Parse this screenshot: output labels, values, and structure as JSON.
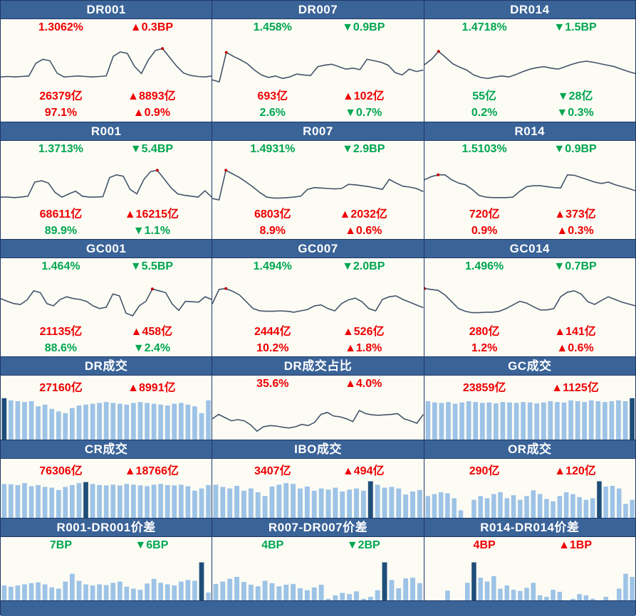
{
  "palette": {
    "header_bg": "#3A6398",
    "border": "#1F3864",
    "panel_bg": "#FCFCF5",
    "bar_light": "#9DC3E6",
    "bar_dark": "#1F4E79",
    "line": "#44546A",
    "red": "#EE0000",
    "green": "#00A650",
    "marker": "#C00000"
  },
  "footer": {
    "label": ""
  },
  "chart_data": [
    {
      "id": "DR001",
      "title": "DR001",
      "type": "line",
      "kind": "rate-line",
      "ylim": [
        0,
        100
      ],
      "grid": false,
      "stat_rows": [
        [
          {
            "text": "1.3062%",
            "color": "red"
          },
          {
            "text": "▲0.3BP",
            "color": "red"
          }
        ],
        [
          {
            "text": "26379亿",
            "color": "red"
          },
          {
            "text": "▲8893亿",
            "color": "red"
          }
        ],
        [
          {
            "text": "97.1%",
            "color": "red"
          },
          {
            "text": "▲0.9%",
            "color": "red"
          }
        ]
      ],
      "values": [
        20,
        21,
        20,
        21,
        22,
        48,
        56,
        53,
        28,
        20,
        21,
        22,
        21,
        20,
        21,
        22,
        62,
        71,
        68,
        42,
        27,
        55,
        74,
        78,
        60,
        42,
        28,
        23,
        21,
        20,
        22
      ],
      "marker_index": 23
    },
    {
      "id": "DR007",
      "title": "DR007",
      "type": "line",
      "kind": "rate-line",
      "ylim": [
        0,
        100
      ],
      "grid": false,
      "stat_rows": [
        [
          {
            "text": "1.458%",
            "color": "green"
          },
          {
            "text": "▼0.9BP",
            "color": "green"
          }
        ],
        [
          {
            "text": "693亿",
            "color": "red"
          },
          {
            "text": "▲102亿",
            "color": "red"
          }
        ],
        [
          {
            "text": "2.6%",
            "color": "green"
          },
          {
            "text": "▼0.7%",
            "color": "green"
          }
        ]
      ],
      "values": [
        14,
        10,
        70,
        62,
        55,
        47,
        34,
        24,
        19,
        22,
        17,
        20,
        26,
        24,
        23,
        41,
        44,
        46,
        41,
        36,
        38,
        35,
        56,
        53,
        50,
        44,
        29,
        24,
        36,
        31,
        34
      ],
      "marker_index": 2
    },
    {
      "id": "DR014",
      "title": "DR014",
      "type": "line",
      "kind": "rate-line",
      "ylim": [
        0,
        100
      ],
      "grid": false,
      "stat_rows": [
        [
          {
            "text": "1.4718%",
            "color": "green"
          },
          {
            "text": "▼1.5BP",
            "color": "green"
          }
        ],
        [
          {
            "text": "55亿",
            "color": "green"
          },
          {
            "text": "▼28亿",
            "color": "green"
          }
        ],
        [
          {
            "text": "0.2%",
            "color": "green"
          },
          {
            "text": "▼0.3%",
            "color": "green"
          }
        ]
      ],
      "values": [
        45,
        56,
        72,
        60,
        47,
        40,
        34,
        24,
        19,
        17,
        20,
        22,
        20,
        25,
        31,
        36,
        39,
        41,
        38,
        36,
        41,
        46,
        50,
        52,
        50,
        47,
        44,
        41,
        36,
        31,
        27
      ],
      "marker_index": 2
    },
    {
      "id": "R001",
      "title": "R001",
      "type": "line",
      "kind": "rate-line",
      "ylim": [
        0,
        100
      ],
      "grid": false,
      "stat_rows": [
        [
          {
            "text": "1.3713%",
            "color": "green"
          },
          {
            "text": "▼5.4BP",
            "color": "green"
          }
        ],
        [
          {
            "text": "68611亿",
            "color": "red"
          },
          {
            "text": "▲16215亿",
            "color": "red"
          }
        ],
        [
          {
            "text": "89.9%",
            "color": "green"
          },
          {
            "text": "▼1.1%",
            "color": "green"
          }
        ]
      ],
      "values": [
        17,
        17,
        16,
        17,
        19,
        50,
        53,
        48,
        27,
        17,
        24,
        30,
        19,
        17,
        17,
        18,
        60,
        66,
        63,
        34,
        24,
        55,
        73,
        76,
        57,
        38,
        24,
        21,
        19,
        17,
        31,
        17
      ],
      "marker_index": 23
    },
    {
      "id": "R007",
      "title": "R007",
      "type": "line",
      "kind": "rate-line",
      "ylim": [
        0,
        100
      ],
      "grid": false,
      "stat_rows": [
        [
          {
            "text": "1.4931%",
            "color": "green"
          },
          {
            "text": "▼2.9BP",
            "color": "green"
          }
        ],
        [
          {
            "text": "6803亿",
            "color": "red"
          },
          {
            "text": "▲2032亿",
            "color": "red"
          }
        ],
        [
          {
            "text": "8.9%",
            "color": "red"
          },
          {
            "text": "▲0.6%",
            "color": "red"
          }
        ]
      ],
      "values": [
        14,
        11,
        76,
        68,
        60,
        50,
        39,
        27,
        17,
        15,
        15,
        16,
        17,
        19,
        34,
        38,
        37,
        36,
        35,
        36,
        45,
        44,
        42,
        40,
        37,
        34,
        56,
        48,
        41,
        39,
        36,
        29
      ],
      "marker_index": 2
    },
    {
      "id": "R014",
      "title": "R014",
      "type": "line",
      "kind": "rate-line",
      "ylim": [
        0,
        100
      ],
      "grid": false,
      "stat_rows": [
        [
          {
            "text": "1.5103%",
            "color": "green"
          },
          {
            "text": "▼0.9BP",
            "color": "green"
          }
        ],
        [
          {
            "text": "720亿",
            "color": "red"
          },
          {
            "text": "▲373亿",
            "color": "red"
          }
        ],
        [
          {
            "text": "0.9%",
            "color": "red"
          },
          {
            "text": "▲0.3%",
            "color": "red"
          }
        ]
      ],
      "values": [
        55,
        62,
        66,
        66,
        55,
        48,
        44,
        34,
        21,
        17,
        16,
        16,
        16,
        17,
        30,
        40,
        42,
        42,
        40,
        38,
        37,
        66,
        65,
        60,
        55,
        50,
        47,
        50,
        44,
        40,
        36,
        31
      ],
      "marker_index": 2
    },
    {
      "id": "GC001",
      "title": "GC001",
      "type": "line",
      "kind": "rate-line",
      "ylim": [
        0,
        100
      ],
      "grid": false,
      "stat_rows": [
        [
          {
            "text": "1.464%",
            "color": "green"
          },
          {
            "text": "▼5.5BP",
            "color": "green"
          }
        ],
        [
          {
            "text": "21135亿",
            "color": "red"
          },
          {
            "text": "▲458亿",
            "color": "red"
          }
        ],
        [
          {
            "text": "88.6%",
            "color": "green"
          },
          {
            "text": "▼2.4%",
            "color": "green"
          }
        ]
      ],
      "values": [
        52,
        46,
        41,
        39,
        49,
        69,
        65,
        41,
        36,
        50,
        56,
        52,
        50,
        46,
        36,
        30,
        33,
        62,
        58,
        20,
        14,
        36,
        46,
        73,
        69,
        65,
        40,
        26,
        46,
        45,
        44,
        56,
        50
      ],
      "marker_index": 23
    },
    {
      "id": "GC007",
      "title": "GC007",
      "type": "line",
      "kind": "rate-line",
      "ylim": [
        0,
        100
      ],
      "grid": false,
      "stat_rows": [
        [
          {
            "text": "1.494%",
            "color": "green"
          },
          {
            "text": "▼2.0BP",
            "color": "green"
          }
        ],
        [
          {
            "text": "2444亿",
            "color": "red"
          },
          {
            "text": "▲526亿",
            "color": "red"
          }
        ],
        [
          {
            "text": "10.2%",
            "color": "red"
          },
          {
            "text": "▲1.8%",
            "color": "red"
          }
        ]
      ],
      "values": [
        40,
        72,
        74,
        68,
        60,
        45,
        30,
        25,
        24,
        24,
        25,
        24,
        22,
        25,
        28,
        36,
        38,
        30,
        25,
        41,
        49,
        53,
        45,
        30,
        25,
        50,
        56,
        58,
        50,
        44,
        38,
        32
      ],
      "marker_index": 2
    },
    {
      "id": "GC014",
      "title": "GC014",
      "type": "line",
      "kind": "rate-line",
      "ylim": [
        0,
        100
      ],
      "grid": false,
      "stat_rows": [
        [
          {
            "text": "1.496%",
            "color": "green"
          },
          {
            "text": "▼0.7BP",
            "color": "green"
          }
        ],
        [
          {
            "text": "280亿",
            "color": "red"
          },
          {
            "text": "▲141亿",
            "color": "red"
          }
        ],
        [
          {
            "text": "1.2%",
            "color": "red"
          },
          {
            "text": "▲0.6%",
            "color": "red"
          }
        ]
      ],
      "values": [
        74,
        72,
        70,
        60,
        45,
        30,
        24,
        21,
        21,
        22,
        22,
        24,
        30,
        38,
        46,
        42,
        34,
        27,
        27,
        30,
        56,
        66,
        69,
        62,
        45,
        39,
        48,
        56,
        50,
        44,
        40,
        36
      ],
      "marker_index": 0
    },
    {
      "id": "DR-vol",
      "title": "DR成交",
      "type": "bar",
      "kind": "vol-bar",
      "ylim": [
        0,
        100
      ],
      "grid": false,
      "stat_rows": [
        [
          {
            "text": "27160亿",
            "color": "red"
          },
          {
            "text": "▲8991亿",
            "color": "red"
          }
        ]
      ],
      "values": [
        97,
        92,
        90,
        88,
        90,
        78,
        82,
        72,
        66,
        62,
        74,
        80,
        82,
        84,
        86,
        88,
        86,
        84,
        82,
        86,
        88,
        86,
        84,
        82,
        80,
        84,
        86,
        82,
        78,
        62,
        92
      ],
      "highlight_index": 0
    },
    {
      "id": "DR-share",
      "title": "DR成交占比",
      "type": "line",
      "kind": "vol-line",
      "ylim": [
        0,
        100
      ],
      "grid": false,
      "stat_rows": [
        [
          {
            "text": "35.6%",
            "color": "red"
          },
          {
            "text": "▲4.0%",
            "color": "red"
          }
        ]
      ],
      "values": [
        45,
        56,
        48,
        40,
        43,
        40,
        30,
        14,
        25,
        28,
        27,
        24,
        22,
        25,
        31,
        28,
        36,
        56,
        61,
        52,
        50,
        45,
        38,
        66,
        58,
        55,
        54,
        55,
        56,
        58,
        45,
        40,
        34,
        56
      ],
      "marker_index": null
    },
    {
      "id": "GC-vol",
      "title": "GC成交",
      "type": "bar",
      "kind": "vol-bar",
      "ylim": [
        0,
        100
      ],
      "grid": false,
      "stat_rows": [
        [
          {
            "text": "23859亿",
            "color": "red"
          },
          {
            "text": "▲1125亿",
            "color": "red"
          }
        ]
      ],
      "values": [
        90,
        87,
        86,
        88,
        84,
        87,
        90,
        88,
        86,
        87,
        85,
        88,
        87,
        86,
        88,
        87,
        85,
        87,
        90,
        88,
        87,
        92,
        90,
        88,
        92,
        90,
        88,
        90,
        92,
        90,
        97
      ],
      "highlight_index": 30
    },
    {
      "id": "CR-vol",
      "title": "CR成交",
      "type": "bar",
      "kind": "vol-bar",
      "ylim": [
        0,
        100
      ],
      "grid": false,
      "stat_rows": [
        [
          {
            "text": "76306亿",
            "color": "red"
          },
          {
            "text": "▲18766亿",
            "color": "red"
          }
        ]
      ],
      "values": [
        90,
        89,
        87,
        92,
        84,
        87,
        82,
        80,
        74,
        82,
        87,
        92,
        95,
        90,
        87,
        86,
        88,
        86,
        90,
        88,
        86,
        84,
        88,
        90,
        87,
        86,
        88,
        84,
        72,
        78,
        87
      ],
      "highlight_index": 12
    },
    {
      "id": "IBO-vol",
      "title": "IBO成交",
      "type": "bar",
      "kind": "vol-bar",
      "ylim": [
        0,
        100
      ],
      "grid": false,
      "stat_rows": [
        [
          {
            "text": "3407亿",
            "color": "red"
          },
          {
            "text": "▲494亿",
            "color": "red"
          }
        ]
      ],
      "values": [
        88,
        82,
        78,
        85,
        72,
        78,
        68,
        58,
        83,
        88,
        92,
        90,
        78,
        83,
        72,
        78,
        75,
        80,
        70,
        75,
        78,
        72,
        97,
        88,
        80,
        82,
        78,
        62,
        70,
        74
      ],
      "highlight_index": 22
    },
    {
      "id": "OR-vol",
      "title": "OR成交",
      "type": "bar",
      "kind": "vol-bar",
      "ylim": [
        0,
        100
      ],
      "grid": false,
      "stat_rows": [
        [
          {
            "text": "290亿",
            "color": "red"
          },
          {
            "text": "▲120亿",
            "color": "red"
          }
        ]
      ],
      "values": [
        58,
        63,
        68,
        65,
        52,
        20,
        0,
        48,
        58,
        52,
        63,
        68,
        52,
        60,
        48,
        58,
        73,
        63,
        50,
        44,
        58,
        68,
        63,
        55,
        48,
        52,
        97,
        83,
        85,
        78,
        37,
        48
      ],
      "highlight_index": 26
    },
    {
      "id": "R001-DR001-spread",
      "title": "R001-DR001价差",
      "type": "bar",
      "kind": "spread-bar",
      "ylim": [
        0,
        100
      ],
      "grid": false,
      "stat_rows": [
        [
          {
            "text": "7BP",
            "color": "green"
          },
          {
            "text": "▼6BP",
            "color": "green"
          }
        ]
      ],
      "values": [
        38,
        35,
        38,
        41,
        44,
        46,
        41,
        33,
        30,
        48,
        68,
        50,
        41,
        38,
        41,
        39,
        45,
        48,
        35,
        30,
        27,
        43,
        55,
        45,
        41,
        38,
        48,
        52,
        50,
        97,
        20
      ],
      "highlight_index": 29
    },
    {
      "id": "R007-DR007-spread",
      "title": "R007-DR007价差",
      "type": "bar",
      "kind": "spread-bar",
      "ylim": [
        0,
        100
      ],
      "grid": false,
      "stat_rows": [
        [
          {
            "text": "4BP",
            "color": "green"
          },
          {
            "text": "▼2BP",
            "color": "green"
          }
        ]
      ],
      "values": [
        42,
        48,
        55,
        60,
        47,
        40,
        36,
        50,
        44,
        36,
        40,
        42,
        31,
        26,
        33,
        40,
        4,
        13,
        19,
        16,
        23,
        4,
        9,
        26,
        97,
        52,
        31,
        56,
        58,
        44
      ],
      "highlight_index": 24
    },
    {
      "id": "R014-DR014-spread",
      "title": "R014-DR014价差",
      "type": "bar",
      "kind": "spread-bar",
      "ylim": [
        0,
        100
      ],
      "grid": false,
      "stat_rows": [
        [
          {
            "text": "4BP",
            "color": "red"
          },
          {
            "text": "▲1BP",
            "color": "red"
          }
        ]
      ],
      "values": [
        0,
        0,
        0,
        25,
        0,
        0,
        45,
        97,
        58,
        48,
        62,
        30,
        38,
        27,
        24,
        32,
        45,
        13,
        9,
        27,
        22,
        0,
        4,
        16,
        13,
        4,
        0,
        9,
        0,
        30,
        68,
        60
      ],
      "highlight_index": 7
    }
  ]
}
